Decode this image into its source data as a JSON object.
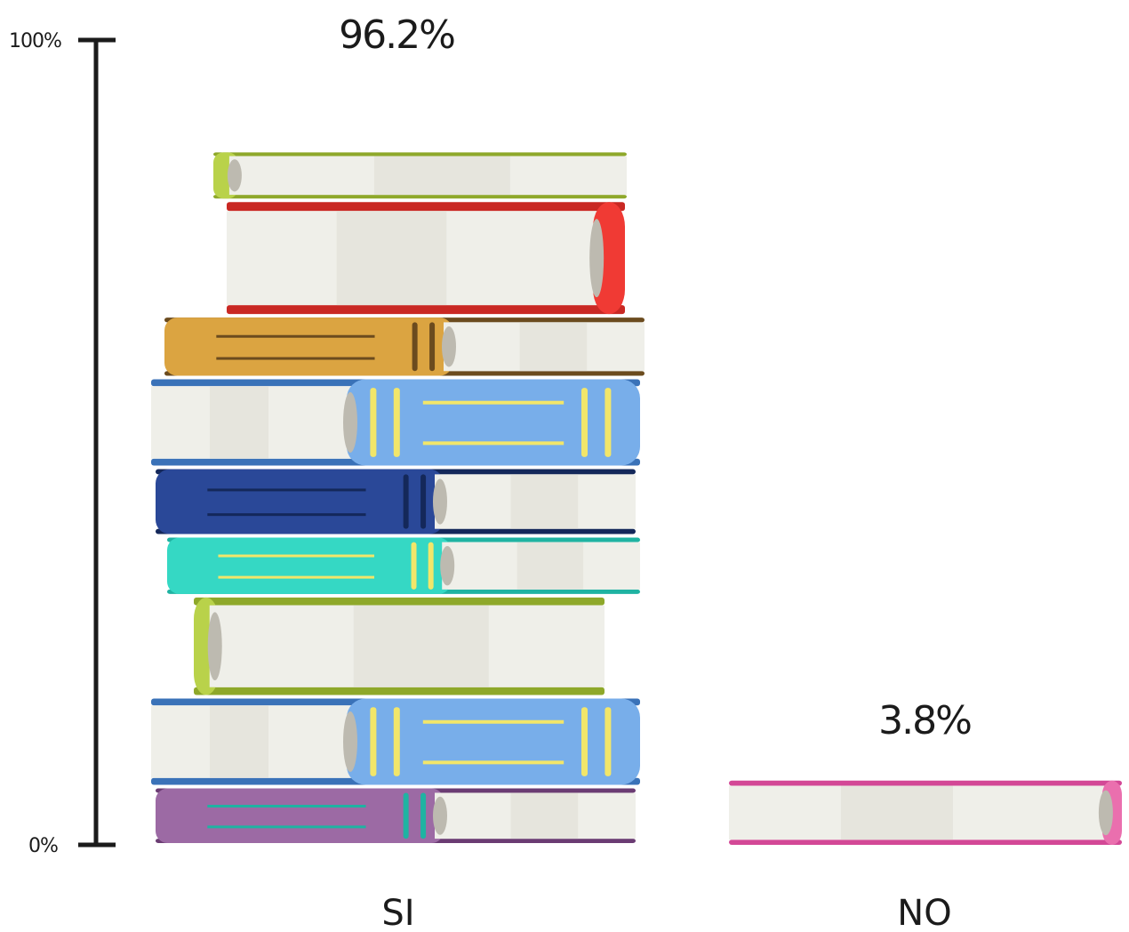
{
  "chart_data": {
    "type": "bar",
    "categories": [
      "SI",
      "NO"
    ],
    "values": [
      96.2,
      3.8
    ],
    "value_labels": [
      "96.2%",
      "3.8%"
    ],
    "ylim": [
      0,
      100
    ],
    "y_tick_labels": [
      "0%",
      "100%"
    ],
    "title": "",
    "xlabel": "",
    "ylabel": "",
    "grid": false,
    "bar_style": "stacked books"
  },
  "colors": {
    "axis": "#1b1b1b",
    "pages": "#efefe9",
    "pages_shade": "#e0ded6",
    "stripe": "#f2e66a",
    "lime": "#b9d24a",
    "lime_dark": "#8ea82a",
    "red": "#f03a34",
    "red_dark": "#c92823",
    "mustard": "#dba441",
    "brown": "#6b4b1e",
    "blue": "#78aeea",
    "blue_dark": "#3a72b8",
    "navy": "#2a4898",
    "navy_dark": "#14285a",
    "teal": "#35d8c4",
    "teal_dark": "#1fb3a2",
    "purple": "#9c6aa4",
    "purple_dark": "#6b3c73",
    "pink": "#ea6fae",
    "pink_dark": "#d34896"
  }
}
